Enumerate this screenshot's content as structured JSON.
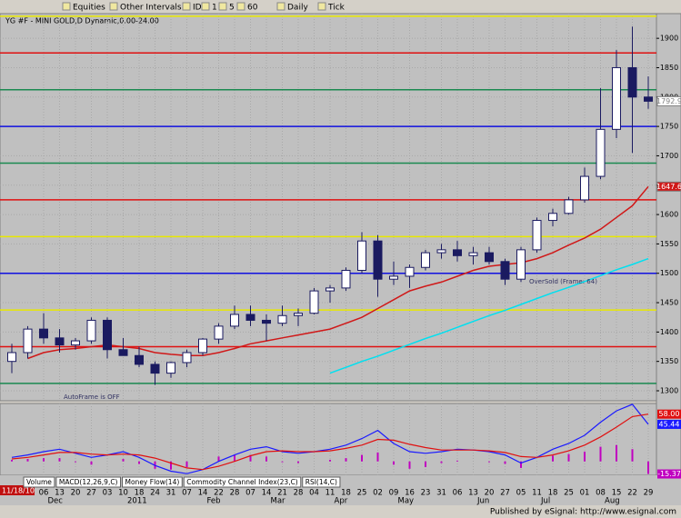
{
  "toolbar": {
    "items": [
      "Equities",
      "Other Intervals",
      "IDC",
      "1",
      "5",
      "60",
      "Daily",
      "Tick"
    ]
  },
  "chart_data": [
    {
      "type": "candlestick",
      "title": "YG #F - MINI GOLD,D Dynamic,0.00-24.00",
      "categories": [
        null,
        null,
        "06",
        "13",
        "20",
        "27",
        "03",
        "10",
        "18",
        "24",
        "31",
        "07",
        "14",
        "22",
        "28",
        "07",
        "14",
        "21",
        "28",
        "04",
        "11",
        "18",
        "25",
        "02",
        "09",
        "16",
        "23",
        "31",
        "06",
        "13",
        "20",
        "27",
        "05",
        "11",
        "18",
        "25",
        "01",
        "08",
        "15",
        "22",
        "29"
      ],
      "month_labels": [
        null,
        "Dec",
        null,
        null,
        null,
        null,
        "2011",
        null,
        null,
        null,
        null,
        "Feb",
        null,
        null,
        null,
        "Mar",
        null,
        null,
        null,
        "Apr",
        null,
        null,
        null,
        "May",
        null,
        null,
        null,
        null,
        "Jun",
        null,
        null,
        null,
        "Jul",
        null,
        null,
        null,
        "Aug",
        null,
        null,
        null,
        null
      ],
      "open": [
        1350,
        1365,
        1405,
        1390,
        1378,
        1385,
        1420,
        1370,
        1360,
        1345,
        1330,
        1348,
        1365,
        1388,
        1410,
        1430,
        1420,
        1415,
        1428,
        1432,
        1470,
        1475,
        1505,
        1555,
        1490,
        1495,
        1510,
        1535,
        1540,
        1530,
        1535,
        1520,
        1490,
        1540,
        1590,
        1602,
        1625,
        1665,
        1745,
        1850,
        1800
      ],
      "high": [
        1380,
        1410,
        1432,
        1405,
        1390,
        1425,
        1425,
        1390,
        1375,
        1350,
        1350,
        1370,
        1390,
        1415,
        1445,
        1445,
        1430,
        1445,
        1440,
        1475,
        1480,
        1510,
        1570,
        1565,
        1520,
        1515,
        1540,
        1550,
        1555,
        1545,
        1545,
        1525,
        1545,
        1595,
        1610,
        1630,
        1680,
        1815,
        1880,
        1920,
        1835
      ],
      "low": [
        1330,
        1355,
        1380,
        1365,
        1370,
        1380,
        1355,
        1360,
        1340,
        1310,
        1322,
        1340,
        1360,
        1380,
        1405,
        1410,
        1385,
        1410,
        1410,
        1430,
        1450,
        1470,
        1500,
        1460,
        1480,
        1475,
        1505,
        1525,
        1520,
        1515,
        1515,
        1480,
        1485,
        1535,
        1580,
        1600,
        1620,
        1660,
        1730,
        1705,
        1780
      ],
      "close": [
        1365,
        1405,
        1390,
        1378,
        1385,
        1420,
        1370,
        1360,
        1345,
        1330,
        1348,
        1365,
        1388,
        1410,
        1430,
        1420,
        1415,
        1428,
        1432,
        1470,
        1475,
        1505,
        1555,
        1490,
        1495,
        1510,
        1535,
        1540,
        1530,
        1535,
        1520,
        1490,
        1540,
        1590,
        1602,
        1625,
        1665,
        1745,
        1850,
        1800,
        1792.9
      ],
      "up_color": "#ffffff",
      "down_color": "#1a1a60",
      "overlays": [
        {
          "color": "#d01818",
          "values": [
            null,
            1355,
            1365,
            1370,
            1372,
            1375,
            1378,
            1375,
            1372,
            1365,
            1362,
            1360,
            1360,
            1365,
            1372,
            1380,
            1385,
            1390,
            1395,
            1400,
            1405,
            1415,
            1425,
            1440,
            1455,
            1470,
            1478,
            1485,
            1495,
            1505,
            1512,
            1515,
            1518,
            1525,
            1535,
            1548,
            1560,
            1575,
            1595,
            1615,
            1647.6
          ]
        },
        {
          "color": "#00e0f0",
          "values": [
            null,
            null,
            null,
            null,
            null,
            null,
            null,
            null,
            null,
            null,
            null,
            null,
            null,
            null,
            null,
            null,
            null,
            null,
            null,
            null,
            1330,
            1340,
            1350,
            1359,
            1369,
            1379,
            1389,
            1398,
            1408,
            1418,
            1428,
            1437,
            1447,
            1457,
            1467,
            1476,
            1486,
            1496,
            1506,
            1515,
            1525
          ]
        }
      ],
      "levels": [
        {
          "value": 1937.5,
          "color": "#e8e800"
        },
        {
          "value": 1875,
          "color": "#e01010"
        },
        {
          "value": 1812.5,
          "color": "#1a8a50"
        },
        {
          "value": 1750,
          "color": "#1010e0"
        },
        {
          "value": 1687.5,
          "color": "#1a8a50"
        },
        {
          "value": 1625,
          "color": "#e01010"
        },
        {
          "value": 1562.5,
          "color": "#e8e800"
        },
        {
          "value": 1500,
          "color": "#1010e0"
        },
        {
          "value": 1437.5,
          "color": "#e8e800"
        },
        {
          "value": 1375,
          "color": "#e01010"
        },
        {
          "value": 1312.5,
          "color": "#1a8a50"
        }
      ],
      "annotations": [
        "OverSold (Frame: 64)",
        "AutoFrame is OFF"
      ],
      "ylim": [
        1283,
        1942
      ],
      "yticks": [
        1300,
        1350,
        1400,
        1450,
        1500,
        1550,
        1600,
        1650,
        1700,
        1750,
        1800,
        1850,
        1900
      ],
      "grid": true
    },
    {
      "type": "macd",
      "ylim": [
        -17,
        71
      ],
      "series": [
        {
          "color": "#1a1aff",
          "values": [
            5,
            8,
            12,
            15,
            10,
            5,
            8,
            12,
            5,
            -5,
            -12,
            -15,
            -10,
            0,
            8,
            15,
            18,
            12,
            10,
            12,
            15,
            20,
            28,
            38,
            22,
            12,
            10,
            12,
            15,
            14,
            12,
            8,
            -2,
            5,
            15,
            22,
            32,
            48,
            62,
            70,
            45.44
          ]
        },
        {
          "color": "#e01010",
          "values": [
            3,
            5,
            8,
            11,
            11,
            9,
            8,
            9,
            8,
            4,
            -2,
            -8,
            -10,
            -6,
            0,
            7,
            12,
            13,
            12,
            12,
            13,
            16,
            20,
            27,
            26,
            21,
            17,
            14,
            14,
            14,
            13,
            11,
            6,
            5,
            8,
            13,
            20,
            30,
            42,
            55,
            58
          ],
          "value_labels": [
            null,
            null,
            null,
            null,
            null,
            null,
            null,
            null,
            null,
            null,
            null,
            null,
            null,
            null,
            null,
            null,
            null,
            null,
            null,
            null,
            null,
            null,
            null,
            null,
            null,
            null,
            null,
            null,
            null,
            null,
            null,
            null,
            null,
            null,
            null,
            null,
            null,
            null,
            null,
            null,
            "58.00"
          ]
        },
        {
          "color": "#c000c0",
          "values": [
            2,
            3,
            4,
            4,
            -1,
            -4,
            0,
            3,
            -3,
            -9,
            -10,
            -7,
            0,
            6,
            8,
            8,
            6,
            -1,
            -2,
            0,
            2,
            4,
            8,
            11,
            -4,
            -9,
            -7,
            -2,
            1,
            0,
            -1,
            -3,
            -8,
            0,
            7,
            9,
            12,
            18,
            20,
            15,
            -15.37
          ]
        }
      ]
    }
  ],
  "tabs": [
    "Volume",
    "MACD(12,26,9,C)",
    "Money Flow(14)",
    "Commodity Channel Index(23,C)",
    "RSI(14,C)"
  ],
  "date_box": "11/18/10",
  "footer": "Published by eSignal: http://www.esignal.com"
}
